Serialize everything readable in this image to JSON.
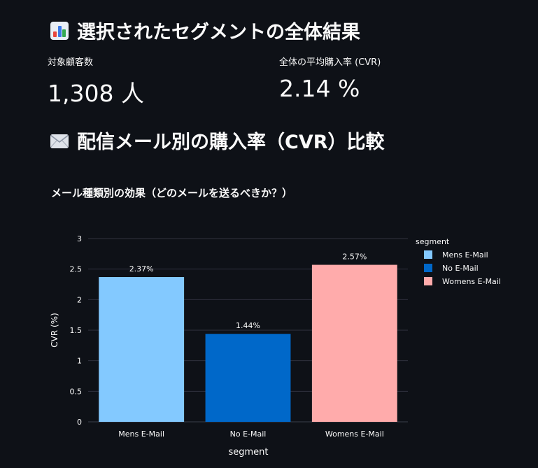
{
  "header": {
    "title_results": "選択されたセグメントの全体結果",
    "title_compare": "配信メール別の購入率（CVR）比較"
  },
  "metrics": {
    "customers": {
      "label": "対象顧客数",
      "value": "1,308 人"
    },
    "cvr": {
      "label": "全体の平均購入率 (CVR)",
      "value": "2.14 %"
    }
  },
  "chart_data": {
    "type": "bar",
    "title": "メール種類別の効果（どのメールを送るべきか？）",
    "xlabel": "segment",
    "ylabel": "CVR (%)",
    "ylim": [
      0,
      3
    ],
    "yticks": [
      "0",
      "0.5",
      "1",
      "1.5",
      "2",
      "2.5",
      "3"
    ],
    "categories": [
      "Mens E-Mail",
      "No E-Mail",
      "Womens E-Mail"
    ],
    "values": [
      2.37,
      1.44,
      2.57
    ],
    "data_labels": [
      "2.37%",
      "1.44%",
      "2.57%"
    ],
    "colors": [
      "#83c9ff",
      "#0068c9",
      "#ffabab"
    ],
    "legend": {
      "title": "segment",
      "placement": "top-right",
      "entries": [
        "Mens E-Mail",
        "No E-Mail",
        "Womens E-Mail"
      ]
    },
    "grid": true
  }
}
